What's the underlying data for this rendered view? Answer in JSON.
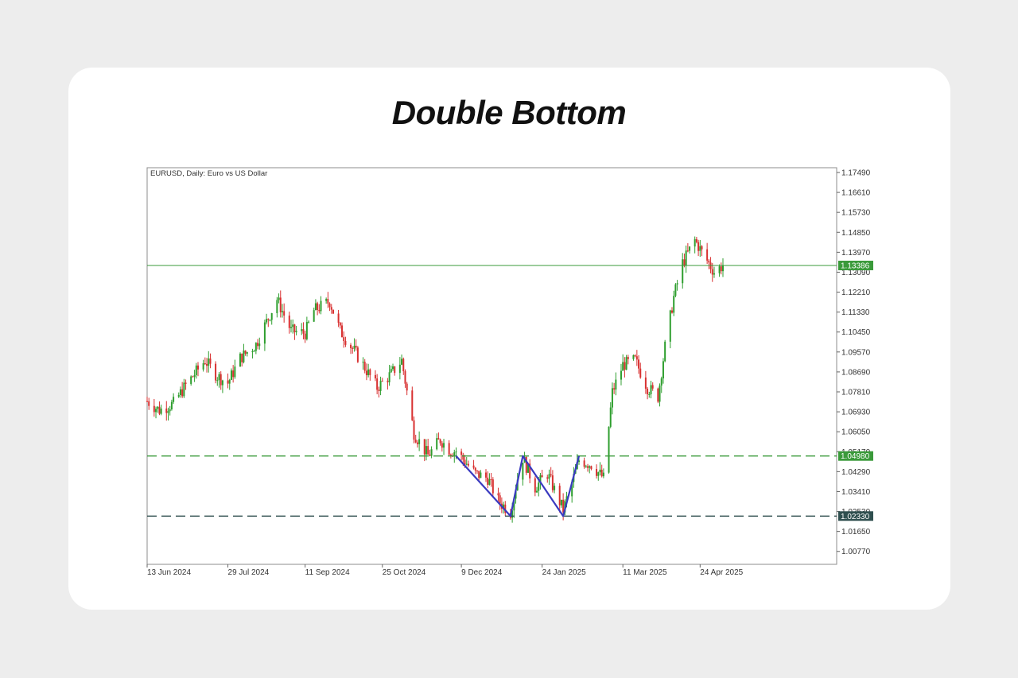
{
  "page": {
    "title": "Double Bottom"
  },
  "chart_data": {
    "type": "candlestick",
    "subtitle": "EURUSD, Daily:  Euro vs US Dollar",
    "y_ticks": [
      "1.17490",
      "1.16610",
      "1.15730",
      "1.14850",
      "1.13970",
      "1.13090",
      "1.12210",
      "1.11330",
      "1.10450",
      "1.09570",
      "1.08690",
      "1.07810",
      "1.06930",
      "1.06050",
      "1.05170",
      "1.04290",
      "1.03410",
      "1.02530",
      "1.01650",
      "1.00770"
    ],
    "x_ticks": [
      "13 Jun 2024",
      "29 Jul 2024",
      "11 Sep 2024",
      "25 Oct 2024",
      "9 Dec 2024",
      "24 Jan 2025",
      "11 Mar 2025",
      "24 Apr 2025"
    ],
    "ylim": [
      1.002,
      1.177
    ],
    "levels": [
      {
        "name": "current-price",
        "value": 1.13386,
        "label": "1.13386",
        "style": "solid",
        "color": "#3a9a3a"
      },
      {
        "name": "neckline",
        "value": 1.0498,
        "label": "1.04980",
        "style": "dashed",
        "color": "#3a9a3a"
      },
      {
        "name": "bottom-support",
        "value": 1.0233,
        "label": "1.02330",
        "style": "dashed",
        "color": "#2f4f4f"
      }
    ],
    "pattern_line": {
      "color": "#3a3ac0",
      "points": [
        {
          "x": "6 Dec 2024",
          "y": 1.0498
        },
        {
          "x": "6 Jan 2025",
          "y": 1.0233
        },
        {
          "x": "13 Jan 2025",
          "y": 1.0498
        },
        {
          "x": "5 Feb 2025",
          "y": 1.0233
        },
        {
          "x": "14 Feb 2025",
          "y": 1.0498
        }
      ]
    },
    "colors": {
      "up": "#2e9e2e",
      "down": "#d83030",
      "grid": "#888888"
    },
    "anchors": [
      [
        "13 Jun 2024",
        1.074
      ],
      [
        "20 Jun 2024",
        1.07
      ],
      [
        "28 Jun 2024",
        1.073
      ],
      [
        "5 Jul 2024",
        1.081
      ],
      [
        "16 Jul 2024",
        1.092
      ],
      [
        "23 Jul 2024",
        1.085
      ],
      [
        "29 Jul 2024",
        1.082
      ],
      [
        "5 Aug 2024",
        1.093
      ],
      [
        "14 Aug 2024",
        1.099
      ],
      [
        "26 Aug 2024",
        1.119
      ],
      [
        "3 Sep 2024",
        1.105
      ],
      [
        "11 Sep 2024",
        1.104
      ],
      [
        "16 Sep 2024",
        1.114
      ],
      [
        "25 Sep 2024",
        1.118
      ],
      [
        "1 Oct 2024",
        1.105
      ],
      [
        "10 Oct 2024",
        1.095
      ],
      [
        "22 Oct 2024",
        1.08
      ],
      [
        "30 Oct 2024",
        1.086
      ],
      [
        "5 Nov 2024",
        1.092
      ],
      [
        "12 Nov 2024",
        1.06
      ],
      [
        "20 Nov 2024",
        1.05
      ],
      [
        "27 Nov 2024",
        1.057
      ],
      [
        "3 Dec 2024",
        1.052
      ],
      [
        "6 Dec 2024",
        1.052
      ],
      [
        "17 Dec 2024",
        1.042
      ],
      [
        "24 Dec 2024",
        1.04
      ],
      [
        "30 Dec 2024",
        1.03
      ],
      [
        "6 Jan 2025",
        1.025
      ],
      [
        "10 Jan 2025",
        1.04
      ],
      [
        "13 Jan 2025",
        1.049
      ],
      [
        "20 Jan 2025",
        1.036
      ],
      [
        "27 Jan 2025",
        1.042
      ],
      [
        "5 Feb 2025",
        1.026
      ],
      [
        "10 Feb 2025",
        1.038
      ],
      [
        "14 Feb 2025",
        1.048
      ],
      [
        "21 Feb 2025",
        1.046
      ],
      [
        "28 Feb 2025",
        1.04
      ],
      [
        "5 Mar 2025",
        1.078
      ],
      [
        "11 Mar 2025",
        1.09
      ],
      [
        "18 Mar 2025",
        1.092
      ],
      [
        "25 Mar 2025",
        1.08
      ],
      [
        "31 Mar 2025",
        1.076
      ],
      [
        "4 Apr 2025",
        1.098
      ],
      [
        "9 Apr 2025",
        1.12
      ],
      [
        "14 Apr 2025",
        1.135
      ],
      [
        "21 Apr 2025",
        1.145
      ],
      [
        "28 Apr 2025",
        1.136
      ],
      [
        "2 May 2025",
        1.131
      ],
      [
        "7 May 2025",
        1.1339
      ]
    ]
  }
}
